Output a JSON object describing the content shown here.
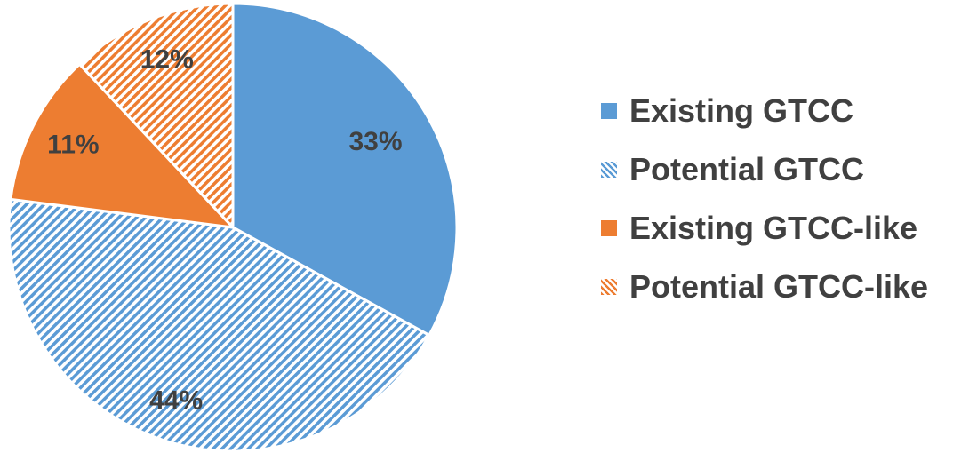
{
  "chart_data": {
    "type": "pie",
    "title": "",
    "start_angle_deg": 0,
    "direction": "clockwise",
    "legend_position": "right",
    "slices": [
      {
        "name": "Existing GTCC",
        "value": 33,
        "label": "33%",
        "color": "#5B9BD5",
        "pattern": "solid"
      },
      {
        "name": "Potential GTCC",
        "value": 44,
        "label": "44%",
        "color": "#5B9BD5",
        "pattern": "diagonal-hatch"
      },
      {
        "name": "Existing GTCC-like",
        "value": 11,
        "label": "11%",
        "color": "#ED7D31",
        "pattern": "solid"
      },
      {
        "name": "Potential GTCC-like",
        "value": 12,
        "label": "12%",
        "color": "#ED7D31",
        "pattern": "diagonal-hatch"
      }
    ]
  },
  "legend": {
    "items": [
      {
        "label": "Existing GTCC"
      },
      {
        "label": "Potential GTCC"
      },
      {
        "label": "Existing GTCC-like"
      },
      {
        "label": "Potential GTCC-like"
      }
    ]
  }
}
